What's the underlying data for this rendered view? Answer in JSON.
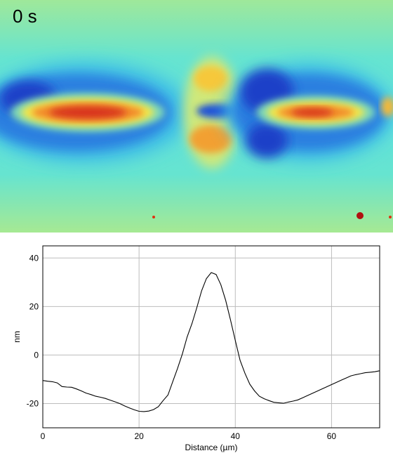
{
  "image_panel": {
    "time_label": "0 s",
    "colors": {
      "background": "#5fe0d8",
      "negative": "#1a4fd6",
      "positive": "#e04a1e",
      "neutral_warm": "#f2e64a"
    }
  },
  "chart_data": {
    "type": "line",
    "xlabel": "Distance (µm)",
    "ylabel": "nm",
    "xlim": [
      0,
      70
    ],
    "ylim": [
      -30,
      45
    ],
    "xticks": [
      0,
      20,
      40,
      60
    ],
    "yticks": [
      -20,
      0,
      20,
      40
    ],
    "grid": true,
    "series": [
      {
        "x": [
          0,
          1,
          2,
          3,
          4,
          5,
          6,
          7,
          8,
          9,
          10,
          11,
          12,
          13,
          14,
          15,
          16,
          17,
          18,
          19,
          20,
          21,
          22,
          23,
          24,
          25,
          26,
          27,
          28,
          29,
          30,
          31,
          32,
          33,
          34,
          35,
          36,
          37,
          38,
          39,
          40,
          41,
          42,
          43,
          44,
          45,
          46,
          47,
          48,
          49,
          50,
          51,
          52,
          53,
          54,
          55,
          56,
          57,
          58,
          59,
          60,
          61,
          62,
          63,
          64,
          65,
          66,
          67,
          68,
          69,
          70
        ],
        "y": [
          -10.5,
          -10.8,
          -11,
          -11.5,
          -13,
          -13.2,
          -13.3,
          -14,
          -14.8,
          -15.7,
          -16.3,
          -17,
          -17.4,
          -17.9,
          -18.6,
          -19.3,
          -20,
          -21,
          -21.8,
          -22.6,
          -23.2,
          -23.3,
          -23.1,
          -22.5,
          -21.3,
          -18.8,
          -16.5,
          -11,
          -5.5,
          0.5,
          7.5,
          13,
          19.5,
          26.5,
          31.5,
          34,
          33.2,
          29,
          22.5,
          14.5,
          6,
          -2.2,
          -7.5,
          -12,
          -14.8,
          -17,
          -18,
          -18.8,
          -19.5,
          -19.7,
          -19.9,
          -19.4,
          -19,
          -18.5,
          -17.6,
          -16.7,
          -15.8,
          -14.9,
          -14,
          -13.1,
          -12.2,
          -11.3,
          -10.4,
          -9.5,
          -8.6,
          -8.1,
          -7.7,
          -7.3,
          -7.1,
          -6.9,
          -6.5
        ]
      }
    ]
  }
}
